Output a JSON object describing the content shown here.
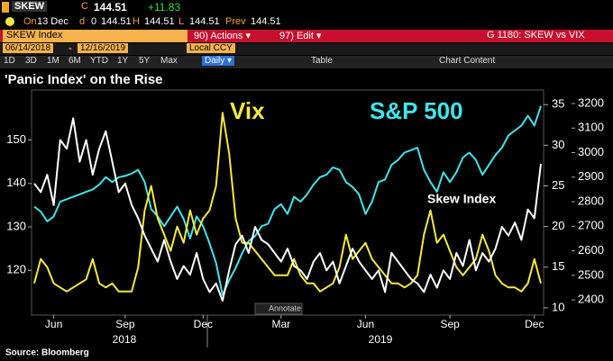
{
  "ui": {
    "ticker": "SKEW",
    "close_label": "C",
    "close": "144.51",
    "change": "+11.83",
    "quote_line": [
      "On",
      "13 Dec",
      "d",
      "0",
      "144.51",
      "H",
      "144.51",
      "L",
      "144.51",
      "Prev",
      "144.51"
    ],
    "security": "SKEW Index",
    "actions": "90) Actions ▾",
    "edit": "97) Edit ▾",
    "page_title": "G 1180: SKEW vs VIX",
    "start_date": "06/14/2018",
    "date_sep": "-",
    "end_date": "12/16/2019",
    "currency": "Local CCY",
    "periods": [
      "1D",
      "3D",
      "1M",
      "6M",
      "YTD",
      "1Y",
      "5Y",
      "Max"
    ],
    "frequency": "Daily ▾",
    "table": "Table",
    "chart_content": "Chart Content",
    "annotate": "Annotate",
    "source": "Source: Bloomberg"
  },
  "chart_data": {
    "type": "line",
    "title": "'Panic Index' on the Rise",
    "categories": [
      null,
      null,
      null,
      "Jun",
      null,
      null,
      null,
      null,
      null,
      null,
      null,
      null,
      null,
      null,
      "Sep",
      null,
      null,
      null,
      null,
      null,
      null,
      null,
      null,
      null,
      null,
      null,
      "Dec",
      null,
      null,
      null,
      null,
      null,
      null,
      null,
      null,
      null,
      null,
      null,
      "Mar",
      null,
      null,
      null,
      null,
      null,
      null,
      null,
      null,
      null,
      null,
      null,
      null,
      "Jun",
      null,
      null,
      null,
      null,
      null,
      null,
      null,
      null,
      null,
      null,
      null,
      null,
      "Sep",
      null,
      null,
      null,
      null,
      null,
      null,
      null,
      null,
      null,
      null,
      null,
      null,
      "Dec",
      null
    ],
    "x_groups": [
      "2018",
      "2019"
    ],
    "ylim": [
      109.7,
      161.5
    ],
    "yticks": [
      120,
      130,
      140,
      150
    ],
    "y2lim": [
      9.1,
      36.8
    ],
    "y2ticks": [
      10,
      15,
      20,
      25,
      30,
      35
    ],
    "y3lim": [
      2338,
      3255
    ],
    "y3ticks": [
      2400,
      2500,
      2600,
      2700,
      2800,
      2900,
      3000,
      3100,
      3200
    ],
    "series": [
      {
        "name": "S&P 500",
        "color": "#3ee6ee",
        "axis": "y3",
        "values": [
          2780,
          2760,
          2720,
          2740,
          2800,
          2810,
          2820,
          2830,
          2840,
          2850,
          2870,
          2900,
          2880,
          2900,
          2905,
          2915,
          2930,
          2880,
          2770,
          2740,
          2700,
          2740,
          2780,
          2730,
          2650,
          2740,
          2700,
          2630,
          2550,
          2420,
          2480,
          2530,
          2590,
          2640,
          2660,
          2700,
          2710,
          2770,
          2790,
          2750,
          2820,
          2800,
          2830,
          2870,
          2900,
          2910,
          2940,
          2930,
          2880,
          2860,
          2830,
          2750,
          2800,
          2880,
          2890,
          2950,
          2970,
          3000,
          3010,
          3020,
          2930,
          2880,
          2840,
          2920,
          2880,
          2920,
          2980,
          3000,
          2970,
          2910,
          2950,
          2990,
          3020,
          3070,
          3090,
          3110,
          3150,
          3110,
          3190
        ]
      },
      {
        "name": "Vix",
        "color": "#f6ea3c",
        "axis": "y2",
        "values": [
          13,
          16,
          15,
          13,
          12.5,
          12,
          12.5,
          13,
          13.5,
          16,
          13,
          12.5,
          13,
          12,
          12,
          12,
          15,
          22,
          25,
          21,
          19,
          17,
          20,
          18,
          22,
          19,
          21,
          22,
          25,
          34,
          29,
          21,
          18,
          18,
          17,
          16,
          15,
          14,
          14,
          14,
          16,
          14,
          13,
          13,
          12,
          12.5,
          13,
          15,
          19,
          16,
          17,
          18,
          16,
          15,
          14,
          13,
          13,
          12.5,
          13,
          14,
          19,
          22,
          18,
          19,
          17,
          15,
          14,
          15,
          16,
          19,
          17,
          14,
          13,
          12.5,
          12.5,
          12,
          13,
          16,
          13
        ]
      },
      {
        "name": "Skew Index",
        "color": "#ffffff",
        "axis": "y",
        "values": [
          140,
          138,
          142,
          135,
          150,
          148,
          155,
          145,
          150,
          142,
          148,
          152,
          145,
          138,
          140,
          135,
          132,
          128,
          125,
          122,
          127,
          122,
          118,
          121,
          119,
          124,
          118,
          115,
          117,
          113,
          120,
          126,
          128,
          124,
          130,
          127,
          126,
          124,
          122,
          125,
          121,
          120,
          118,
          122,
          124,
          120,
          122,
          117,
          121,
          125,
          122,
          120,
          118,
          120,
          115,
          124,
          122,
          120,
          118,
          117,
          115,
          119,
          116,
          120,
          118,
          124,
          121,
          127,
          120,
          124,
          122,
          125,
          130,
          128,
          131,
          127,
          134,
          132,
          144.51
        ]
      }
    ]
  }
}
